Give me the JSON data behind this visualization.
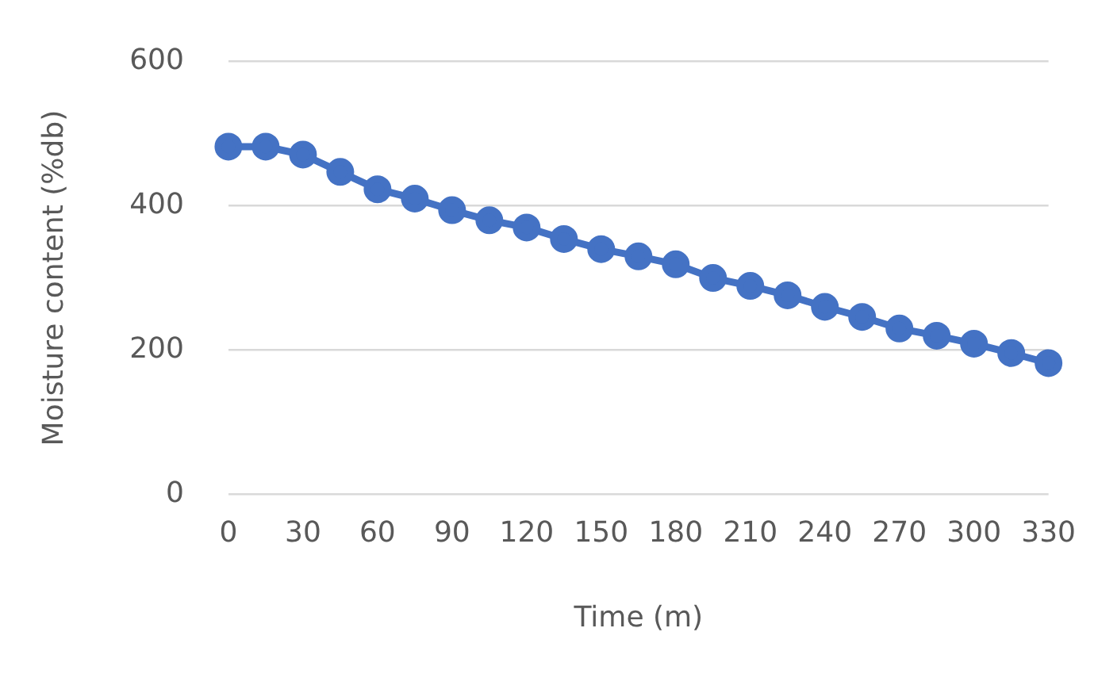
{
  "chart_data": {
    "type": "line",
    "xlabel": "Time (m)",
    "ylabel": "Moisture content (%db)",
    "categories": [
      "0",
      null,
      "30",
      null,
      "60",
      null,
      "90",
      null,
      "120",
      null,
      "150",
      null,
      "180",
      null,
      "210",
      null,
      "240",
      null,
      "270",
      null,
      "300",
      null,
      "330"
    ],
    "series": [
      {
        "color": "#4472c4",
        "values": [
          482,
          482,
          471,
          447,
          423,
          410,
          394,
          380,
          370,
          354,
          340,
          330,
          319,
          300,
          289,
          276,
          260,
          246,
          230,
          220,
          209,
          196,
          182
        ]
      }
    ],
    "ylim": [
      0,
      600
    ],
    "yticks": [
      0,
      200,
      400,
      600
    ],
    "grid": "y",
    "marker": "circle",
    "line_style": "solid",
    "legend": false
  }
}
